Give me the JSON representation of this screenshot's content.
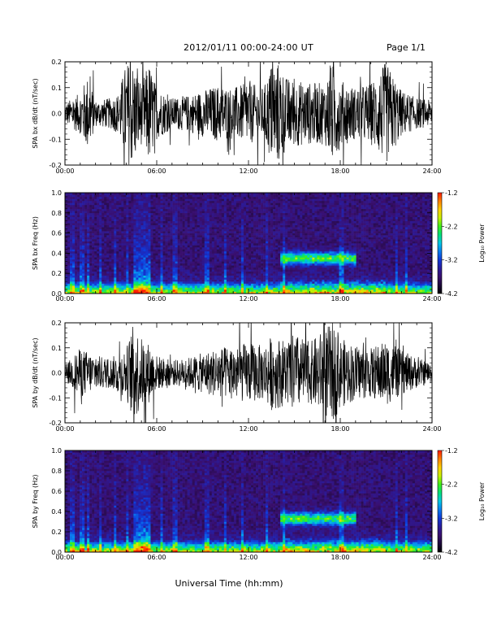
{
  "header": {
    "title": "2012/01/11   00:00-24:00 UT",
    "page": "Page 1/1"
  },
  "xlabel": "Universal Time (hh:mm)",
  "time_ticks": [
    "00:00",
    "06:00",
    "12:00",
    "18:00",
    "24:00"
  ],
  "chart_data": [
    {
      "type": "line",
      "id": "bx-dbdt",
      "ylabel": "SPA bx dB/dt (nT/sec)",
      "xlim": [
        0,
        24
      ],
      "ylim": [
        -0.2,
        0.2
      ],
      "yticks": [
        "-0.2",
        "-0.1",
        "0.0",
        "0.1",
        "0.2"
      ],
      "color": "#000000",
      "envelope": {
        "x": [
          0,
          1,
          1.5,
          2,
          3,
          3.5,
          4,
          4.5,
          5,
          5.5,
          6,
          7,
          8,
          9,
          10,
          11,
          12,
          13,
          13.5,
          14,
          14.5,
          15,
          16,
          17,
          17.5,
          18,
          19,
          20,
          21,
          22,
          23,
          24
        ],
        "amp": [
          0.04,
          0.08,
          0.15,
          0.05,
          0.06,
          0.08,
          0.2,
          0.2,
          0.12,
          0.2,
          0.1,
          0.06,
          0.07,
          0.09,
          0.11,
          0.1,
          0.12,
          0.1,
          0.2,
          0.2,
          0.14,
          0.13,
          0.12,
          0.12,
          0.2,
          0.13,
          0.1,
          0.12,
          0.2,
          0.09,
          0.06,
          0.05
        ]
      }
    },
    {
      "type": "heatmap",
      "id": "bx-spec",
      "ylabel": "SPA bx Freq (Hz)",
      "xlim": [
        0,
        24
      ],
      "ylim": [
        0.0,
        1.0
      ],
      "yticks": [
        "0.0",
        "0.2",
        "0.4",
        "0.6",
        "0.8",
        "1.0"
      ],
      "colorbar": {
        "label": "Log₁₀ Power",
        "range": [
          -4.2,
          -1.2
        ],
        "ticks": [
          "-1.2",
          "-2.2",
          "-3.2",
          "-4.2"
        ]
      },
      "band": {
        "x_start": 14,
        "x_end": 19,
        "freq_center": 0.35,
        "freq_width": 0.06
      },
      "spikes_hr": [
        0.5,
        1.1,
        1.5,
        2.3,
        3.3,
        4.1,
        4.9,
        6.3,
        7.2,
        9.3,
        10.5,
        11.6,
        13.2,
        14.3,
        18.1,
        21.7,
        22.3
      ]
    },
    {
      "type": "line",
      "id": "by-dbdt",
      "ylabel": "SPA by dB/dt (nT/sec)",
      "xlim": [
        0,
        24
      ],
      "ylim": [
        -0.2,
        0.2
      ],
      "yticks": [
        "-0.2",
        "-0.1",
        "0.0",
        "0.1",
        "0.2"
      ],
      "color": "#000000",
      "envelope": {
        "x": [
          0,
          1,
          2,
          3,
          4,
          4.5,
          5,
          5.5,
          6,
          7,
          8,
          9,
          10,
          11,
          12,
          13,
          13.5,
          14,
          14.5,
          15,
          16,
          17,
          17.5,
          18,
          19,
          20,
          21,
          22,
          23,
          24
        ],
        "amp": [
          0.03,
          0.1,
          0.07,
          0.06,
          0.1,
          0.2,
          0.14,
          0.12,
          0.07,
          0.05,
          0.06,
          0.08,
          0.1,
          0.11,
          0.12,
          0.11,
          0.15,
          0.14,
          0.13,
          0.16,
          0.12,
          0.18,
          0.2,
          0.14,
          0.11,
          0.1,
          0.13,
          0.09,
          0.06,
          0.04
        ]
      }
    },
    {
      "type": "heatmap",
      "id": "by-spec",
      "ylabel": "SPA by Freq (Hz)",
      "xlim": [
        0,
        24
      ],
      "ylim": [
        0.0,
        1.0
      ],
      "yticks": [
        "0.0",
        "0.2",
        "0.4",
        "0.6",
        "0.8",
        "1.0"
      ],
      "colorbar": {
        "label": "Log₁₀ Power",
        "range": [
          -4.2,
          -1.2
        ],
        "ticks": [
          "-1.2",
          "-2.2",
          "-3.2",
          "-4.2"
        ]
      },
      "band": {
        "x_start": 14,
        "x_end": 19,
        "freq_center": 0.33,
        "freq_width": 0.06
      },
      "spikes_hr": [
        0.5,
        1.1,
        1.5,
        2.3,
        3.3,
        4.1,
        4.9,
        6.3,
        7.2,
        9.3,
        10.5,
        11.6,
        13.2,
        14.3,
        18.1,
        21.7,
        22.3
      ]
    }
  ],
  "colors": {
    "colormap": [
      "#000000",
      "#1c0a3a",
      "#3a0f6e",
      "#2a1c9c",
      "#1038d8",
      "#0a7cf0",
      "#00c8e6",
      "#00e07a",
      "#3ef018",
      "#c8f000",
      "#ffd000",
      "#ff8000",
      "#ff1800"
    ]
  }
}
